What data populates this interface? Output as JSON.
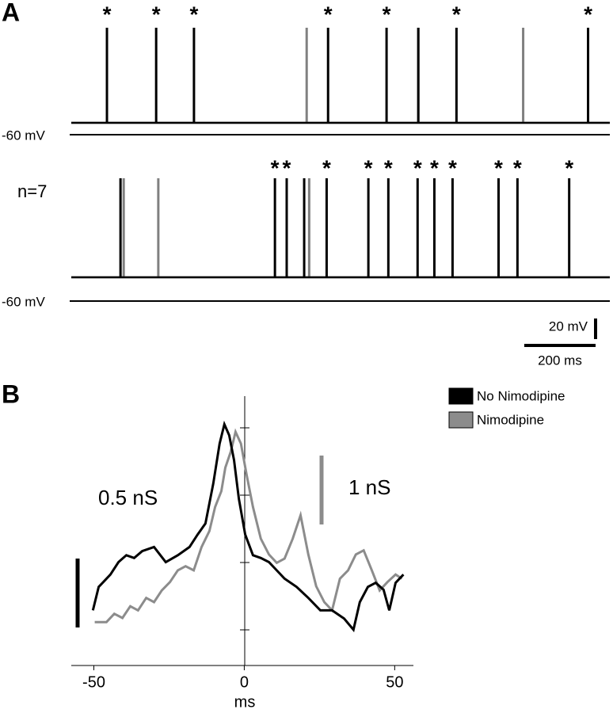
{
  "chart_data": [
    {
      "type": "trace",
      "panel_label": "A",
      "xlim": [
        0,
        1510
      ],
      "rows": [
        {
          "rest_label": "-60 mV",
          "series": [
            {
              "color": "#000000",
              "spike_times": [
                100,
                238,
                344,
                720,
                884,
                973,
                1080,
                1449
              ]
            },
            {
              "color": "#808080",
              "spike_times": [
                660,
                973,
                1267
              ]
            }
          ],
          "asterisks": {
            "text": "*",
            "times": [
              100,
              238,
              344,
              720,
              884,
              1080,
              1449
            ]
          }
        },
        {
          "rest_label": "-60 mV",
          "label": "n=7",
          "series": [
            {
              "color": "#000000",
              "spike_times": [
                138,
                571,
                604,
                653,
                716,
                833,
                889,
                971,
                1018,
                1069,
                1198,
                1251,
                1396
              ]
            },
            {
              "color": "#808080",
              "spike_times": [
                147,
                244,
                667
              ]
            }
          ],
          "asterisks": {
            "text": "*",
            "times": [
              571,
              604,
              716,
              833,
              889,
              971,
              1018,
              1069,
              1198,
              1251,
              1396
            ]
          }
        }
      ],
      "scale_bars": [
        {
          "value": 20,
          "label": "20 mV"
        },
        {
          "value": 200,
          "label": "200 ms"
        }
      ]
    },
    {
      "type": "line",
      "panel_label": "B",
      "xlabel": "ms",
      "xlim": [
        -57.5,
        55.7
      ],
      "xticks": [
        -50,
        0,
        50
      ],
      "ylim": [
        -0.23,
        1.724
      ],
      "y2lim": [
        -0.46,
        3.448
      ],
      "series": [
        {
          "name": "No Nimodipine",
          "color": "#000000",
          "x": [
            -50.3,
            -48.4,
            -44.5,
            -41.8,
            -39.2,
            -36.6,
            -33.9,
            -30.0,
            -26.1,
            -22.1,
            -18.2,
            -15.5,
            -12.9,
            -10.3,
            -8.2,
            -6.6,
            -5.0,
            -3.4,
            -1.8,
            0.3,
            2.9,
            5.5,
            8.2,
            10.8,
            13.4,
            17.4,
            21.3,
            25.3,
            29.2,
            33.2,
            36.3,
            38.4,
            41.1,
            43.7,
            46.3,
            48.2,
            50.3,
            52.9
          ],
          "values": [
            0.17,
            0.34,
            0.43,
            0.52,
            0.57,
            0.55,
            0.6,
            0.63,
            0.52,
            0.57,
            0.63,
            0.72,
            0.8,
            1.09,
            1.38,
            1.52,
            1.44,
            1.26,
            0.98,
            0.72,
            0.57,
            0.55,
            0.52,
            0.46,
            0.4,
            0.34,
            0.26,
            0.17,
            0.17,
            0.11,
            0.03,
            0.23,
            0.34,
            0.37,
            0.32,
            0.17,
            0.37,
            0.43
          ]
        },
        {
          "name": "Nimodipine",
          "color": "#8c8c8c",
          "axis": "y2",
          "x": [
            -49.7,
            -45.8,
            -43.2,
            -40.5,
            -37.9,
            -35.3,
            -32.6,
            -30.0,
            -27.4,
            -24.7,
            -22.1,
            -19.5,
            -16.8,
            -14.2,
            -11.6,
            -9.7,
            -7.6,
            -6.3,
            -4.5,
            -2.9,
            -1.1,
            0.8,
            2.9,
            5.5,
            8.2,
            10.8,
            13.4,
            16.1,
            18.7,
            21.3,
            23.9,
            26.6,
            29.2,
            31.8,
            34.5,
            37.1,
            39.7,
            42.4,
            45.0,
            47.6,
            50.3,
            52.4
          ],
          "values": [
            0.17,
            0.17,
            0.29,
            0.23,
            0.4,
            0.34,
            0.52,
            0.46,
            0.63,
            0.75,
            0.92,
            0.98,
            0.92,
            1.26,
            1.49,
            1.84,
            2.07,
            2.41,
            2.64,
            2.93,
            2.76,
            2.3,
            1.84,
            1.38,
            1.15,
            1.03,
            1.09,
            1.38,
            1.72,
            1.15,
            0.69,
            0.46,
            0.34,
            0.8,
            0.92,
            1.15,
            1.21,
            0.92,
            0.63,
            0.75,
            0.86,
            0.8
          ]
        }
      ],
      "scale_bars": [
        {
          "value": 0.5,
          "label": "0.5 nS"
        },
        {
          "value": 1,
          "label": "1 nS",
          "axis": "y2"
        }
      ]
    }
  ]
}
